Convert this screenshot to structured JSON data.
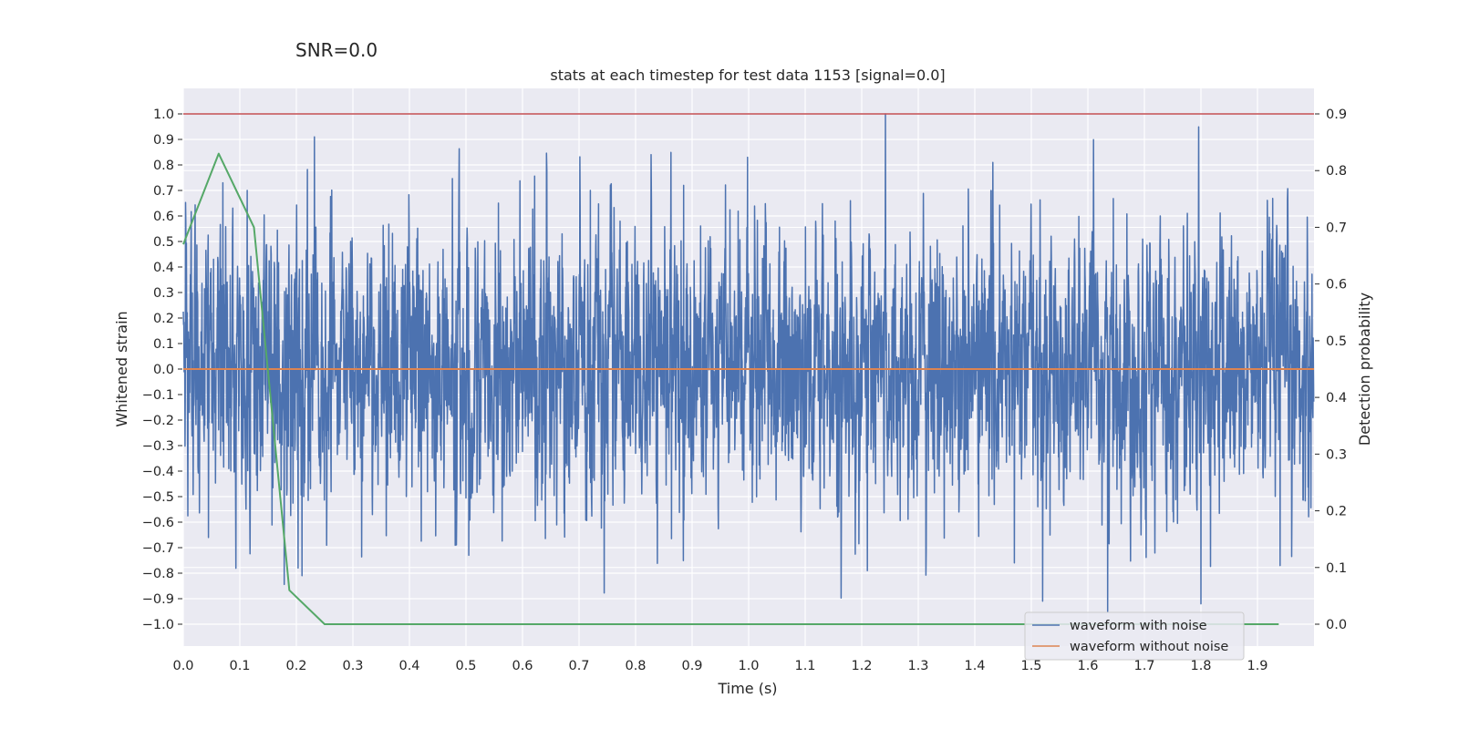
{
  "chart_data": {
    "type": "line",
    "suptitle": "SNR=0.0",
    "title": "stats at each timestep for test data 1153 [signal=0.0]",
    "xlabel": "Time (s)",
    "ylabel": "Whitened strain",
    "y2label": "Detection probability",
    "xlim": [
      0.0,
      2.0
    ],
    "ylim": [
      -1.1,
      1.1
    ],
    "y2lim": [
      -0.04,
      0.94
    ],
    "x_ticks": [
      "0.0",
      "0.1",
      "0.2",
      "0.3",
      "0.4",
      "0.5",
      "0.6",
      "0.7",
      "0.8",
      "0.9",
      "1.0",
      "1.1",
      "1.2",
      "1.3",
      "1.4",
      "1.5",
      "1.6",
      "1.7",
      "1.8",
      "1.9"
    ],
    "y_ticks": [
      "1.0",
      "0.9",
      "0.8",
      "0.7",
      "0.6",
      "0.5",
      "0.4",
      "0.3",
      "0.2",
      "0.1",
      "0.0",
      "−0.1",
      "−0.2",
      "−0.3",
      "−0.4",
      "−0.5",
      "−0.6",
      "−0.7",
      "−0.8",
      "−0.9",
      "−1.0"
    ],
    "y2_ticks": [
      "0.9",
      "0.8",
      "0.7",
      "0.6",
      "0.5",
      "0.4",
      "0.3",
      "0.2",
      "0.1",
      "0.0"
    ],
    "grid": true,
    "legend_position": "bottom-right",
    "threshold": {
      "value": 1.0,
      "color": "#c44e52"
    },
    "series": [
      {
        "name": "waveform with noise",
        "color": "#4c72b0",
        "axis": "left",
        "sample_count": 4000,
        "x_range": [
          0.0,
          2.0
        ],
        "approx_range": [
          -1.0,
          1.0
        ],
        "peaks": [
          {
            "x": 0.232,
            "y": 0.91
          },
          {
            "x": 0.998,
            "y": 0.83
          },
          {
            "x": 1.242,
            "y": 1.0
          },
          {
            "x": 1.432,
            "y": 0.81
          },
          {
            "x": 0.07,
            "y": 0.73
          },
          {
            "x": 0.113,
            "y": 0.7
          },
          {
            "x": 0.72,
            "y": 0.7
          },
          {
            "x": 0.885,
            "y": 0.72
          },
          {
            "x": 1.18,
            "y": 0.66
          },
          {
            "x": 1.8,
            "y": 0.66
          },
          {
            "x": 1.635,
            "y": -0.95
          },
          {
            "x": 1.52,
            "y": -0.91
          },
          {
            "x": 1.8,
            "y": -0.92
          },
          {
            "x": 1.21,
            "y": -0.79
          },
          {
            "x": 0.21,
            "y": -0.81
          },
          {
            "x": 0.505,
            "y": -0.73
          },
          {
            "x": 1.47,
            "y": -0.76
          },
          {
            "x": 1.94,
            "y": -0.77
          }
        ]
      },
      {
        "name": "waveform without noise",
        "color": "#dd8452",
        "axis": "left",
        "x": [
          0.0,
          2.0
        ],
        "y": [
          0.0,
          0.0
        ]
      },
      {
        "name": "Detection probability",
        "color": "#55a868",
        "axis": "right",
        "x": [
          0.0,
          0.0625,
          0.125,
          0.1875,
          0.25,
          0.3125,
          0.5,
          1.0,
          1.5,
          1.9375
        ],
        "y": [
          0.67,
          0.83,
          0.7,
          0.06,
          0.0,
          0.0,
          0.0,
          0.0,
          0.0,
          0.0
        ]
      }
    ]
  }
}
